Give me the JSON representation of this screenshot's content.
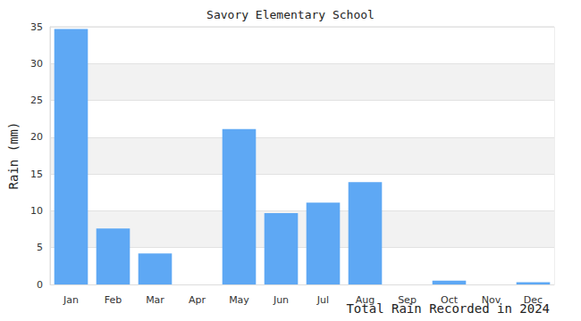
{
  "chart_data": {
    "type": "bar",
    "title": "Savory Elementary School",
    "ylabel": "Rain (mm)",
    "xlabel": "Total Rain Recorded in 2024",
    "categories": [
      "Jan",
      "Feb",
      "Mar",
      "Apr",
      "May",
      "Jun",
      "Jul",
      "Aug",
      "Sep",
      "Oct",
      "Nov",
      "Dec"
    ],
    "values": [
      34.7,
      7.6,
      4.2,
      0,
      21.1,
      9.7,
      11.1,
      13.9,
      0,
      0.5,
      0,
      0.3
    ],
    "color": "#5ea8f4",
    "ylim": [
      0,
      35
    ],
    "yticks": [
      0,
      5,
      10,
      15,
      20,
      25,
      30,
      35
    ],
    "grid": true
  }
}
